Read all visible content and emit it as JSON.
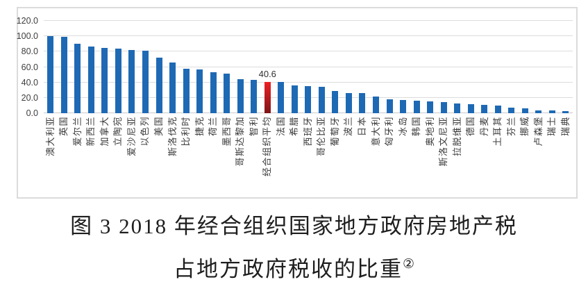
{
  "figure": {
    "caption_line1": "图 3 2018 年经合组织国家地方政府房地产税",
    "caption_line2": "占地方政府税收的比重",
    "caption_footnote_mark": "②"
  },
  "chart_data": {
    "type": "bar",
    "title": "",
    "xlabel": "",
    "ylabel": "",
    "ylim": [
      0,
      120
    ],
    "ytick_labels": [
      "0.0",
      "20.0",
      "40.0",
      "60.0",
      "80.0",
      "100.0",
      "120.0"
    ],
    "grid": true,
    "legend": "none",
    "bar_color": "#1E69B4",
    "gridline_color": "#DCDCDC",
    "highlight": {
      "index": 16,
      "category": "经合组织平均",
      "value": 40.6,
      "label": "40.6",
      "color_top": "#EC2024",
      "color_bottom": "#7E1518"
    },
    "categories": [
      "澳大利亚",
      "英国",
      "爱尔兰",
      "新西兰",
      "加拿大",
      "立陶宛",
      "爱沙尼亚",
      "以色列",
      "美国",
      "斯洛伐克",
      "比利时",
      "捷克",
      "荷兰",
      "墨西哥",
      "哥斯达黎加",
      "智利",
      "经合组织平均",
      "法国",
      "希腊",
      "西班牙",
      "哥伦比亚",
      "葡萄牙",
      "波兰",
      "日本",
      "意大利",
      "匈牙利",
      "冰岛",
      "韩国",
      "奥地利",
      "斯洛文尼亚",
      "拉脱维亚",
      "德国",
      "丹麦",
      "土耳其",
      "芬兰",
      "挪威",
      "卢森堡",
      "瑞士",
      "瑞典"
    ],
    "values": [
      100.5,
      99.5,
      90.5,
      87,
      85,
      84,
      82.5,
      81,
      72,
      66,
      57.5,
      57,
      53,
      51.5,
      44.5,
      43,
      40.6,
      40.4,
      36,
      35.5,
      34,
      29,
      26,
      25.8,
      21.5,
      18,
      17.5,
      16,
      15,
      14.5,
      12.5,
      12,
      11,
      10,
      7.5,
      6.5,
      3.5,
      3.5,
      2.5
    ]
  }
}
